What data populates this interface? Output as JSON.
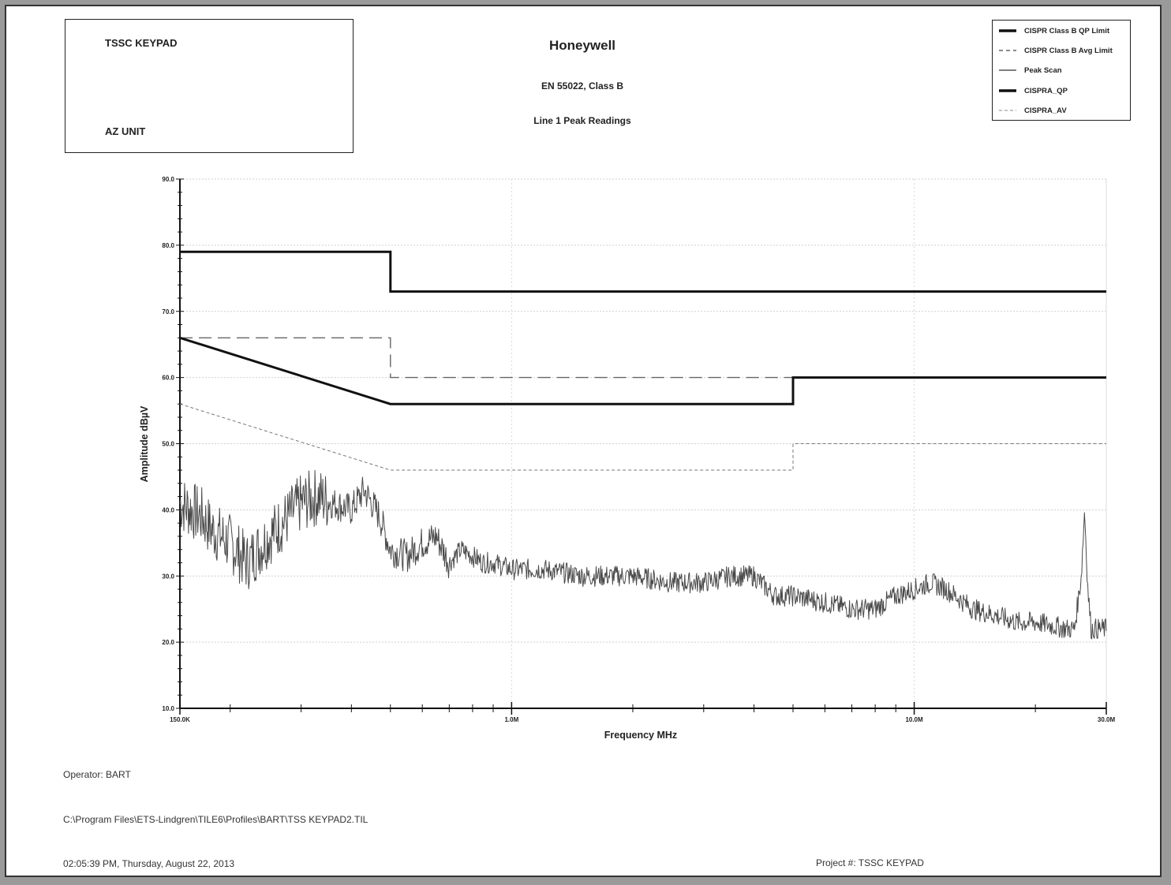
{
  "header": {
    "box_line1": "TSSC KEYPAD",
    "box_line2": "AZ UNIT",
    "company": "Honeywell",
    "standard": "EN 55022, Class B",
    "subtitle": "Line 1 Peak Readings"
  },
  "footer": {
    "operator": "Operator: BART",
    "file_path": "C:\\Program Files\\ETS-Lindgren\\TILE6\\Profiles\\BART\\TSS KEYPAD2.TIL",
    "timestamp": "02:05:39 PM, Thursday, August 22, 2013",
    "project": "Project #: TSSC KEYPAD"
  },
  "chart_data": {
    "type": "line",
    "title": "Line 1 Peak Readings",
    "xlabel": "Frequency MHz",
    "ylabel": "Amplitude dBµV",
    "x_scale": "log",
    "xlim": [
      0.15,
      30
    ],
    "ylim": [
      10,
      90
    ],
    "x_ticks": [
      {
        "value": 0.15,
        "label": "150.0K"
      },
      {
        "value": 1,
        "label": "1.0M"
      },
      {
        "value": 10,
        "label": "10.0M"
      },
      {
        "value": 30,
        "label": "30.0M"
      }
    ],
    "y_ticks": [
      {
        "value": 90,
        "label": "90.0"
      },
      {
        "value": 80,
        "label": "80.0"
      },
      {
        "value": 70,
        "label": "70.0"
      },
      {
        "value": 60,
        "label": "60.0"
      },
      {
        "value": 50,
        "label": "50.0"
      },
      {
        "value": 40,
        "label": "40.0"
      },
      {
        "value": 30,
        "label": "30.0"
      },
      {
        "value": 20,
        "label": "20.0"
      },
      {
        "value": 10,
        "label": "10.0"
      }
    ],
    "grid": true,
    "legend_position": "top-right",
    "series": [
      {
        "name": "CISPR Class B QP Limit",
        "style": "thick-solid",
        "color": "#111111",
        "x": [
          0.15,
          0.5,
          0.5,
          30
        ],
        "y": [
          79,
          79,
          73,
          73
        ]
      },
      {
        "name": "CISPR Class B Avg Limit",
        "style": "long-dash",
        "color": "#666666",
        "x": [
          0.15,
          0.5,
          0.5,
          30
        ],
        "y": [
          66,
          66,
          60,
          60
        ]
      },
      {
        "name": "Peak Scan",
        "style": "thin-noisy",
        "color": "#4a4a4a",
        "x": [
          0.15,
          0.16,
          0.17,
          0.18,
          0.2,
          0.22,
          0.25,
          0.28,
          0.3,
          0.33,
          0.36,
          0.4,
          0.43,
          0.47,
          0.5,
          0.55,
          0.6,
          0.65,
          0.7,
          0.75,
          0.8,
          0.85,
          0.9,
          1.0,
          1.2,
          1.5,
          2.0,
          2.5,
          3.0,
          3.5,
          4.0,
          4.5,
          5.0,
          6.0,
          7.0,
          8.0,
          9.0,
          10.0,
          11.0,
          12.0,
          14.0,
          16.0,
          18.0,
          20.0,
          22.0,
          24.0,
          25.0,
          26.0,
          26.5,
          27.0,
          27.5,
          28.0,
          30.0
        ],
        "y": [
          41,
          40,
          39,
          37,
          35,
          32,
          36,
          39,
          41,
          42,
          41,
          40,
          43,
          39,
          34,
          33,
          35,
          36,
          32,
          34,
          33,
          32,
          32,
          31,
          31,
          30,
          30,
          29,
          29,
          30,
          30,
          27,
          27,
          26,
          25,
          25,
          27,
          28,
          29,
          28,
          25,
          24,
          23,
          23,
          22.5,
          22,
          22,
          30,
          40,
          28,
          22,
          22,
          22
        ]
      },
      {
        "name": "CISPRA_QP",
        "style": "thick-solid",
        "color": "#111111",
        "x": [
          0.15,
          0.5,
          5.0,
          5.0,
          30
        ],
        "y": [
          66,
          56,
          56,
          60,
          60
        ]
      },
      {
        "name": "CISPRA_AV",
        "style": "thin-dash",
        "color": "#777777",
        "x": [
          0.15,
          0.5,
          5.0,
          5.0,
          30
        ],
        "y": [
          56,
          46,
          46,
          50,
          50
        ]
      }
    ]
  }
}
